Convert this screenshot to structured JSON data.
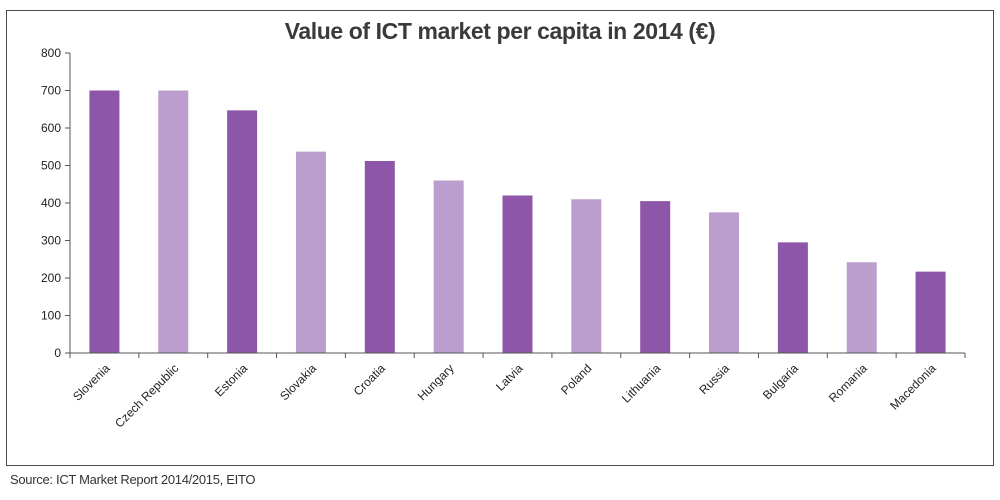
{
  "chart_data": {
    "type": "bar",
    "title": "Value of ICT market per capita in 2014 (€)",
    "xlabel": "",
    "ylabel": "",
    "ylim": [
      0,
      800
    ],
    "yticks": [
      "0",
      "100",
      "200",
      "300",
      "400",
      "500",
      "600",
      "700",
      "800"
    ],
    "categories": [
      "Slovenia",
      "Czech Republic",
      "Estonia",
      "Slovakia",
      "Croatia",
      "Hungary",
      "Latvia",
      "Poland",
      "Lithuania",
      "Russia",
      "Bulgaria",
      "Romania",
      "Macedonia"
    ],
    "values": [
      700,
      700,
      647,
      537,
      512,
      460,
      420,
      410,
      405,
      375,
      295,
      242,
      217
    ],
    "bar_colors": [
      "#8e56a8",
      "#bb9ecd",
      "#8e56a8",
      "#bb9ecd",
      "#8e56a8",
      "#bb9ecd",
      "#8e56a8",
      "#bb9ecd",
      "#8e56a8",
      "#bb9ecd",
      "#8e56a8",
      "#bb9ecd",
      "#8e56a8"
    ],
    "grid": false
  },
  "source": "Source: ICT Market Report 2014/2015, EITO"
}
